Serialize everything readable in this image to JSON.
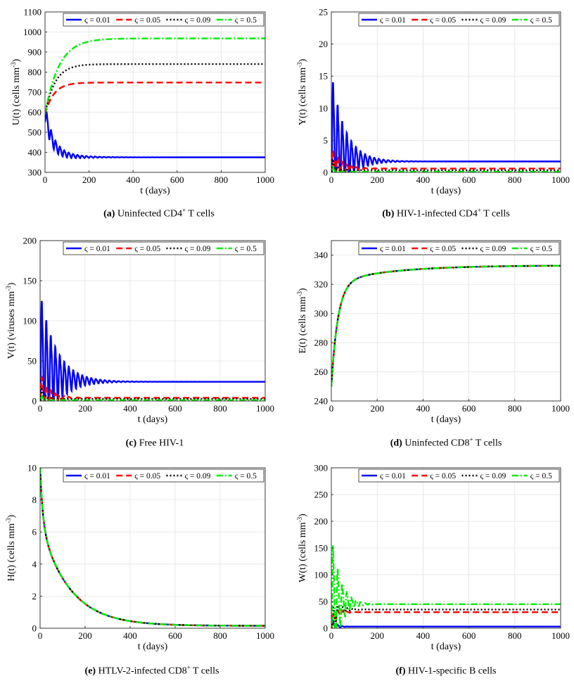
{
  "figure": {
    "legend_symbol": "ς",
    "legend_labels": [
      "ς = 0.01",
      "ς = 0.05",
      "ς = 0.09",
      "ς = 0.5"
    ],
    "series_colors": [
      "#0000ff",
      "#ff0000",
      "#000000",
      "#00ee00"
    ],
    "series_styles": [
      "solid",
      "dashed",
      "dotted",
      "dashdot"
    ]
  },
  "captions": [
    {
      "tag": "(a)",
      "text": "Uninfected CD4",
      "sup": "+",
      "after": " T cells"
    },
    {
      "tag": "(b)",
      "text": "HIV-1-infected CD4",
      "sup": "+",
      "after": " T cells"
    },
    {
      "tag": "(c)",
      "text": "Free HIV-1",
      "sup": "",
      "after": ""
    },
    {
      "tag": "(d)",
      "text": "Uninfected CD8",
      "sup": "+",
      "after": " T cells"
    },
    {
      "tag": "(e)",
      "text": "HTLV-2-infected CD8",
      "sup": "+",
      "after": " T cells"
    },
    {
      "tag": "(f)",
      "text": "HIV-1-specific B cells",
      "sup": "",
      "after": ""
    }
  ],
  "chart_data": [
    {
      "id": "a",
      "type": "line",
      "xlabel": "t (days)",
      "ylabel": "U(t) (cells mm",
      "ylabel_sup": "-3",
      "ylabel_end": ")",
      "xlim": [
        0,
        1000
      ],
      "ylim": [
        300,
        1100
      ],
      "xticks": [
        0,
        200,
        400,
        600,
        800,
        1000
      ],
      "yticks": [
        300,
        400,
        500,
        600,
        700,
        800,
        900,
        1000,
        1100
      ],
      "series": [
        {
          "name": "ς = 0.01",
          "start": 590,
          "end": 375,
          "rate": 0.03,
          "osc_amp": 80,
          "osc_period": 20,
          "osc_decay": 0.012
        },
        {
          "name": "ς = 0.05",
          "start": 590,
          "end": 748,
          "rate": 0.025
        },
        {
          "name": "ς = 0.09",
          "start": 590,
          "end": 840,
          "rate": 0.022
        },
        {
          "name": "ς = 0.5",
          "start": 590,
          "end": 968,
          "rate": 0.016
        }
      ]
    },
    {
      "id": "b",
      "type": "line",
      "xlabel": "t (days)",
      "ylabel": "Y(t) (cells mm",
      "ylabel_sup": "-3",
      "ylabel_end": ")",
      "xlim": [
        0,
        1000
      ],
      "ylim": [
        0,
        25
      ],
      "xticks": [
        0,
        200,
        400,
        600,
        800,
        1000
      ],
      "yticks": [
        0,
        5,
        10,
        15,
        20,
        25
      ],
      "series": [
        {
          "name": "ς = 0.01",
          "start": 0,
          "end": 1.7,
          "rate": 0.5,
          "osc_amp": 20,
          "osc_period": 20,
          "osc_decay": 0.017
        },
        {
          "name": "ς = 0.05",
          "start": 0,
          "end": 0.6,
          "rate": 0.5,
          "osc_amp": 5,
          "osc_period": 20,
          "osc_decay": 0.025
        },
        {
          "name": "ς = 0.09",
          "start": 0,
          "end": 0.33,
          "rate": 0.5,
          "osc_amp": 3,
          "osc_period": 20,
          "osc_decay": 0.05
        },
        {
          "name": "ς = 0.5",
          "start": 0,
          "end": 0.1,
          "rate": 0.5,
          "osc_amp": 2,
          "osc_period": 20,
          "osc_decay": 0.08
        }
      ]
    },
    {
      "id": "c",
      "type": "line",
      "xlabel": "t (days)",
      "ylabel": "V(t) (viruses mm",
      "ylabel_sup": "-3",
      "ylabel_end": ")",
      "xlim": [
        0,
        1000
      ],
      "ylim": [
        0,
        200
      ],
      "xticks": [
        0,
        200,
        400,
        600,
        800,
        1000
      ],
      "yticks": [
        0,
        50,
        100,
        150,
        200
      ],
      "series": [
        {
          "name": "ς = 0.01",
          "start": 0,
          "end": 24,
          "rate": 0.5,
          "osc_amp": 160,
          "osc_period": 20,
          "osc_decay": 0.014
        },
        {
          "name": "ς = 0.05",
          "start": 0,
          "end": 4,
          "rate": 0.5,
          "osc_amp": 44,
          "osc_period": 20,
          "osc_decay": 0.025
        },
        {
          "name": "ς = 0.09",
          "start": 0,
          "end": 2.5,
          "rate": 0.5,
          "osc_amp": 25,
          "osc_period": 20,
          "osc_decay": 0.05
        },
        {
          "name": "ς = 0.5",
          "start": 0,
          "end": 1.0,
          "rate": 0.5,
          "osc_amp": 15,
          "osc_period": 20,
          "osc_decay": 0.08
        }
      ]
    },
    {
      "id": "d",
      "type": "line",
      "xlabel": "t (days)",
      "ylabel": "E(t) (cells mm",
      "ylabel_sup": "-3",
      "ylabel_end": ")",
      "xlim": [
        0,
        1000
      ],
      "ylim": [
        240,
        350
      ],
      "xticks": [
        0,
        200,
        400,
        600,
        800,
        1000
      ],
      "yticks": [
        240,
        260,
        280,
        300,
        320,
        340
      ],
      "series": [
        {
          "name": "ς = 0.01",
          "mode": "sat",
          "start": 250,
          "end": 333,
          "rate": 0.035,
          "slow_amp": 12,
          "slow_rate": 0.004
        },
        {
          "name": "ς = 0.05",
          "mode": "sat",
          "start": 250,
          "end": 333,
          "rate": 0.035,
          "slow_amp": 12,
          "slow_rate": 0.004
        },
        {
          "name": "ς = 0.09",
          "mode": "sat",
          "start": 250,
          "end": 333,
          "rate": 0.035,
          "slow_amp": 12,
          "slow_rate": 0.004
        },
        {
          "name": "ς = 0.5",
          "mode": "sat",
          "start": 250,
          "end": 333,
          "rate": 0.035,
          "slow_amp": 12,
          "slow_rate": 0.004
        }
      ]
    },
    {
      "id": "e",
      "type": "line",
      "xlabel": "t (days)",
      "ylabel": "H(t) (cells mm",
      "ylabel_sup": "-3",
      "ylabel_end": ")",
      "xlim": [
        0,
        1000
      ],
      "ylim": [
        0,
        10
      ],
      "xticks": [
        0,
        200,
        400,
        600,
        800,
        1000
      ],
      "yticks": [
        0,
        2,
        4,
        6,
        8,
        10
      ],
      "series": [
        {
          "name": "ς = 0.01",
          "mode": "decay",
          "start": 10,
          "end": 0.15
        },
        {
          "name": "ς = 0.05",
          "mode": "decay",
          "start": 10,
          "end": 0.15
        },
        {
          "name": "ς = 0.09",
          "mode": "decay",
          "start": 10,
          "end": 0.15
        },
        {
          "name": "ς = 0.5",
          "mode": "decay",
          "start": 10,
          "end": 0.15
        }
      ]
    },
    {
      "id": "f",
      "type": "line",
      "xlabel": "t (days)",
      "ylabel": "W(t) (cells mm",
      "ylabel_sup": "-3",
      "ylabel_end": ")",
      "xlim": [
        0,
        1000
      ],
      "ylim": [
        0,
        300
      ],
      "xticks": [
        0,
        200,
        400,
        600,
        800,
        1000
      ],
      "yticks": [
        0,
        50,
        100,
        150,
        200,
        250,
        300
      ],
      "series": [
        {
          "name": "ς = 0.01",
          "start": 0,
          "end": 3,
          "rate": 0.5,
          "osc_amp": 25,
          "osc_period": 20,
          "osc_decay": 0.06
        },
        {
          "name": "ς = 0.05",
          "start": 0,
          "end": 30,
          "rate": 0.06,
          "osc_amp": 40,
          "osc_period": 20,
          "osc_decay": 0.04
        },
        {
          "name": "ς = 0.09",
          "start": 0,
          "end": 35,
          "rate": 0.06,
          "osc_amp": 55,
          "osc_period": 20,
          "osc_decay": 0.035
        },
        {
          "name": "ς = 0.5",
          "start": 0,
          "end": 45,
          "rate": 0.05,
          "osc_amp": 250,
          "osc_period": 20,
          "osc_decay": 0.03
        }
      ]
    }
  ]
}
